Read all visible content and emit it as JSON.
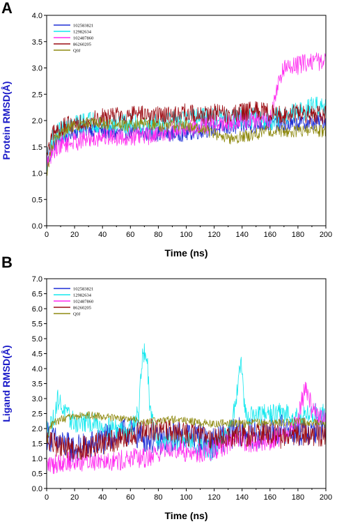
{
  "colors": {
    "axis_title_y": "#1a1ac8",
    "s1": "#1f2fd6",
    "s2": "#14e8ee",
    "s3": "#ff2bf0",
    "s4": "#9b0b12",
    "s5": "#8f8a10"
  },
  "chart_data": [
    {
      "panel": "A",
      "type": "line",
      "xlabel": "Time (ns)",
      "ylabel": "Protein RMSD(Å)",
      "xlim": [
        0,
        200
      ],
      "ylim": [
        0.0,
        4.0
      ],
      "xticks": [
        "0",
        "20",
        "40",
        "60",
        "80",
        "100",
        "120",
        "140",
        "160",
        "180",
        "200"
      ],
      "yticks": [
        "0.0",
        "0.5",
        "1.0",
        "1.5",
        "2.0",
        "2.5",
        "3.0",
        "3.5",
        "4.0"
      ],
      "legend_position": "top-left",
      "series": [
        {
          "name": "102583821",
          "color_key": "s1",
          "x": [
            0,
            2,
            5,
            10,
            20,
            30,
            40,
            50,
            60,
            70,
            80,
            90,
            100,
            110,
            120,
            130,
            140,
            150,
            160,
            170,
            180,
            190,
            200
          ],
          "y": [
            1.1,
            1.3,
            1.55,
            1.65,
            1.8,
            1.85,
            1.8,
            1.75,
            1.8,
            1.75,
            1.75,
            1.75,
            1.75,
            1.8,
            1.85,
            1.85,
            1.9,
            1.9,
            1.95,
            1.9,
            1.95,
            1.95,
            2.0
          ],
          "noise": 0.15
        },
        {
          "name": "12982634",
          "color_key": "s2",
          "x": [
            0,
            2,
            5,
            10,
            20,
            30,
            40,
            50,
            60,
            70,
            80,
            90,
            100,
            110,
            120,
            130,
            140,
            150,
            160,
            170,
            180,
            190,
            200
          ],
          "y": [
            1.2,
            1.5,
            1.7,
            1.8,
            1.9,
            2.0,
            1.95,
            1.9,
            1.95,
            1.9,
            1.95,
            2.0,
            2.0,
            2.05,
            2.05,
            2.0,
            2.05,
            2.05,
            2.0,
            2.1,
            2.15,
            2.25,
            2.3
          ],
          "noise": 0.2
        },
        {
          "name": "102487860",
          "color_key": "s3",
          "x": [
            0,
            2,
            5,
            10,
            20,
            30,
            40,
            50,
            60,
            70,
            80,
            90,
            100,
            110,
            120,
            130,
            140,
            150,
            160,
            165,
            170,
            180,
            190,
            200
          ],
          "y": [
            1.2,
            1.3,
            1.45,
            1.55,
            1.6,
            1.65,
            1.7,
            1.7,
            1.7,
            1.7,
            1.75,
            1.8,
            1.85,
            1.9,
            1.95,
            1.95,
            2.0,
            2.0,
            2.0,
            2.6,
            3.0,
            3.05,
            3.15,
            3.1
          ],
          "noise": 0.18
        },
        {
          "name": "86260205",
          "color_key": "s4",
          "x": [
            0,
            2,
            5,
            10,
            20,
            30,
            40,
            50,
            60,
            70,
            80,
            90,
            100,
            110,
            120,
            130,
            140,
            150,
            160,
            170,
            180,
            190,
            200
          ],
          "y": [
            1.3,
            1.5,
            1.75,
            1.85,
            1.95,
            2.0,
            2.05,
            2.1,
            2.1,
            2.1,
            2.1,
            2.1,
            2.15,
            2.1,
            2.15,
            2.1,
            2.15,
            2.2,
            2.15,
            2.1,
            2.15,
            2.1,
            2.1
          ],
          "noise": 0.18
        },
        {
          "name": "Q0J",
          "color_key": "s5",
          "x": [
            0,
            2,
            5,
            10,
            20,
            30,
            40,
            50,
            60,
            70,
            80,
            90,
            100,
            110,
            120,
            130,
            140,
            150,
            160,
            170,
            180,
            190,
            200
          ],
          "y": [
            0.9,
            1.3,
            1.6,
            1.75,
            1.9,
            1.95,
            1.95,
            1.9,
            1.9,
            1.95,
            1.9,
            1.9,
            1.9,
            1.85,
            1.75,
            1.65,
            1.7,
            1.75,
            1.8,
            1.8,
            1.8,
            1.8,
            1.8
          ],
          "noise": 0.12
        }
      ]
    },
    {
      "panel": "B",
      "type": "line",
      "xlabel": "Time (ns)",
      "ylabel": "Ligand RMSD(Å)",
      "xlim": [
        0,
        200
      ],
      "ylim": [
        0.0,
        7.0
      ],
      "xticks": [
        "0",
        "20",
        "40",
        "60",
        "80",
        "100",
        "120",
        "140",
        "160",
        "180",
        "200"
      ],
      "yticks": [
        "0.0",
        "0.5",
        "1.0",
        "1.5",
        "2.0",
        "2.5",
        "3.0",
        "3.5",
        "4.0",
        "4.5",
        "5.0",
        "5.5",
        "6.0",
        "6.5",
        "7.0"
      ],
      "legend_position": "top-left",
      "series": [
        {
          "name": "102583821",
          "color_key": "s1",
          "x": [
            0,
            5,
            10,
            20,
            30,
            40,
            50,
            60,
            70,
            80,
            90,
            100,
            110,
            120,
            130,
            140,
            150,
            160,
            170,
            180,
            190,
            200
          ],
          "y": [
            1.8,
            1.6,
            1.5,
            1.3,
            1.4,
            1.6,
            1.8,
            1.9,
            1.7,
            1.6,
            1.7,
            1.8,
            1.7,
            1.5,
            1.8,
            1.9,
            1.8,
            1.9,
            2.0,
            1.9,
            1.9,
            2.0
          ],
          "noise": 0.5
        },
        {
          "name": "12982634",
          "color_key": "s2",
          "x": [
            0,
            5,
            8,
            10,
            15,
            20,
            30,
            40,
            50,
            60,
            66,
            68,
            70,
            72,
            74,
            80,
            90,
            100,
            110,
            120,
            130,
            136,
            138,
            140,
            142,
            150,
            160,
            170,
            180,
            190,
            200
          ],
          "y": [
            2.0,
            2.3,
            3.0,
            2.8,
            2.4,
            2.2,
            2.2,
            2.1,
            2.0,
            2.0,
            2.5,
            4.2,
            4.6,
            4.3,
            2.5,
            1.6,
            1.5,
            1.6,
            1.4,
            1.2,
            1.8,
            3.0,
            4.3,
            4.0,
            2.5,
            2.4,
            2.5,
            2.5,
            2.4,
            2.5,
            2.5
          ],
          "noise": 0.35
        },
        {
          "name": "102487860",
          "color_key": "s3",
          "x": [
            0,
            5,
            10,
            20,
            30,
            40,
            50,
            60,
            70,
            80,
            90,
            100,
            110,
            120,
            130,
            140,
            150,
            160,
            170,
            180,
            183,
            186,
            190,
            195,
            200
          ],
          "y": [
            0.8,
            0.8,
            0.9,
            0.9,
            0.9,
            1.0,
            0.9,
            1.0,
            1.0,
            1.2,
            1.4,
            1.2,
            1.2,
            1.3,
            1.5,
            1.6,
            1.5,
            1.6,
            1.8,
            2.2,
            3.0,
            3.4,
            2.6,
            2.4,
            2.5
          ],
          "noise": 0.35
        },
        {
          "name": "86260205",
          "color_key": "s4",
          "x": [
            0,
            5,
            10,
            20,
            30,
            40,
            50,
            60,
            70,
            80,
            90,
            100,
            110,
            120,
            130,
            140,
            150,
            160,
            170,
            180,
            190,
            200
          ],
          "y": [
            1.6,
            1.5,
            1.4,
            1.3,
            1.4,
            1.5,
            1.6,
            1.7,
            1.9,
            2.0,
            1.9,
            1.8,
            1.8,
            1.7,
            1.7,
            1.8,
            1.8,
            1.8,
            1.7,
            1.8,
            1.8,
            1.8
          ],
          "noise": 0.4
        },
        {
          "name": "Q0J",
          "color_key": "s5",
          "x": [
            0,
            2,
            5,
            10,
            20,
            30,
            40,
            50,
            60,
            70,
            80,
            90,
            100,
            110,
            120,
            130,
            140,
            150,
            160,
            170,
            180,
            190,
            200
          ],
          "y": [
            1.5,
            2.0,
            2.2,
            2.3,
            2.4,
            2.45,
            2.4,
            2.35,
            2.3,
            2.2,
            2.25,
            2.3,
            2.25,
            2.2,
            2.15,
            2.2,
            2.15,
            2.2,
            2.2,
            2.2,
            2.25,
            2.2,
            2.15
          ],
          "noise": 0.13
        }
      ]
    }
  ]
}
